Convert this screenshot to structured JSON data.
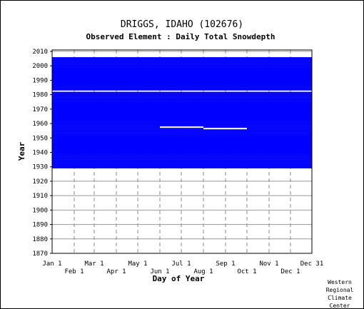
{
  "chart_data": {
    "type": "heatmap",
    "title": "DRIGGS, IDAHO   (102676)",
    "subtitle": "Observed Element : Daily Total Snowdepth",
    "xlabel": "Day of Year",
    "ylabel": "Year",
    "x_ticks_top_row": [
      "Jan 1",
      "Mar 1",
      "May 1",
      "Jul 1",
      "Sep 1",
      "Nov 1",
      "Dec 31"
    ],
    "x_ticks_bottom_row": [
      "Feb 1",
      "Apr 1",
      "Jun 1",
      "Aug 1",
      "Oct 1",
      "Dec 1"
    ],
    "x_tick_days": {
      "Jan 1": 1,
      "Feb 1": 32,
      "Mar 1": 60,
      "Apr 1": 91,
      "May 1": 121,
      "Jun 1": 152,
      "Jul 1": 182,
      "Aug 1": 213,
      "Sep 1": 244,
      "Oct 1": 274,
      "Nov 1": 305,
      "Dec 1": 335,
      "Dec 31": 365
    },
    "y_ticks": [
      1870,
      1880,
      1890,
      1900,
      1910,
      1920,
      1930,
      1940,
      1950,
      1960,
      1970,
      1980,
      1990,
      2000,
      2010
    ],
    "xlim": [
      1,
      365
    ],
    "ylim": [
      1870,
      2011
    ],
    "data_color": "#0000ff",
    "record_start_year": 1929,
    "record_end_year": 2005,
    "missing_years": [
      1982
    ],
    "partial_years": [
      {
        "year": 1957,
        "from_day": 152,
        "to_day": 213
      },
      {
        "year": 1956,
        "from_day": 213,
        "to_day": 274
      }
    ],
    "grid": true,
    "credit": [
      "Western",
      "Regional",
      "Climate",
      "Center"
    ]
  }
}
